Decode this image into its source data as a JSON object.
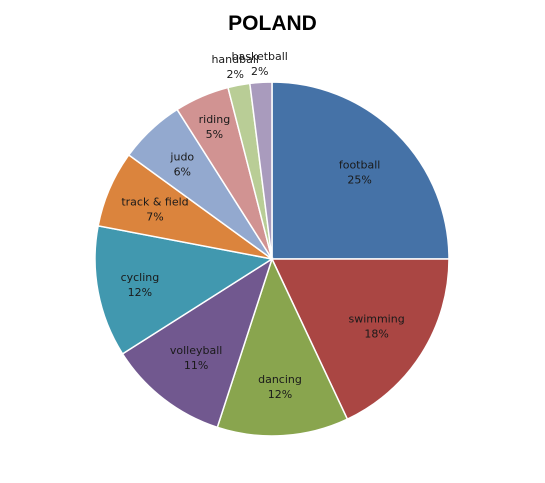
{
  "chart_data": {
    "type": "pie",
    "title": "POLAND",
    "slices": [
      {
        "label": "football",
        "value": 25,
        "display": "25%",
        "color": "#4572A7"
      },
      {
        "label": "swimming",
        "value": 18,
        "display": "18%",
        "color": "#AA4643"
      },
      {
        "label": "dancing",
        "value": 12,
        "display": "12%",
        "color": "#89A54E"
      },
      {
        "label": "volleyball",
        "value": 11,
        "display": "11%",
        "color": "#71588F"
      },
      {
        "label": "cycling",
        "value": 12,
        "display": "12%",
        "color": "#4198AF"
      },
      {
        "label": "track & field",
        "value": 7,
        "display": "7%",
        "color": "#DB843D"
      },
      {
        "label": "judo",
        "value": 6,
        "display": "6%",
        "color": "#93A9CF"
      },
      {
        "label": "riding",
        "value": 5,
        "display": "5%",
        "color": "#D19392"
      },
      {
        "label": "handball",
        "value": 2,
        "display": "2%",
        "color": "#B9CD96"
      },
      {
        "label": "basketball",
        "value": 2,
        "display": "2%",
        "color": "#A99BBD"
      }
    ],
    "legend": "none"
  }
}
